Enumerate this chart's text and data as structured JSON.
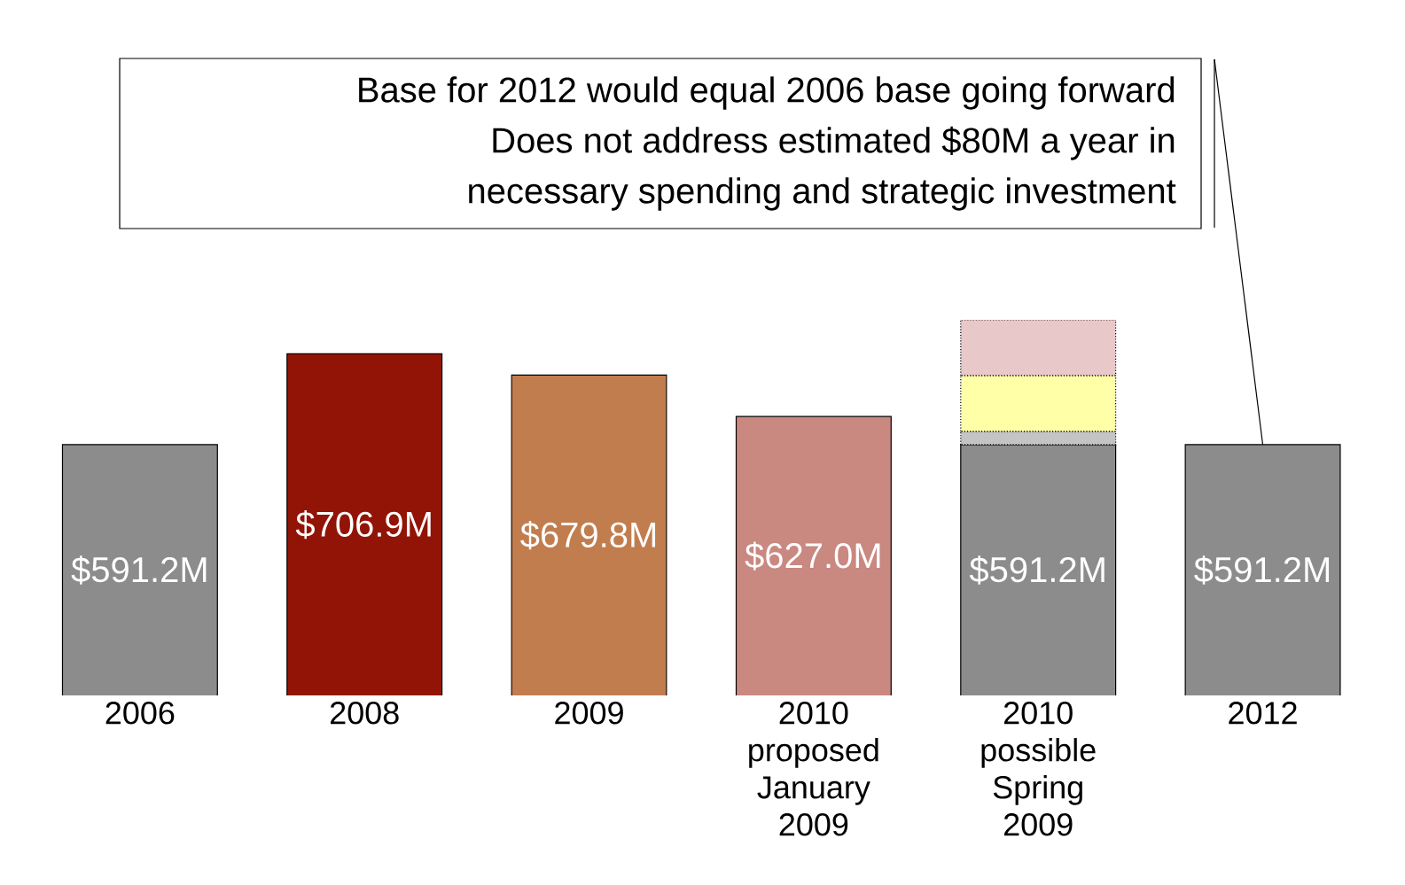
{
  "chart_data": {
    "type": "bar",
    "stacked": true,
    "categories": [
      "2006",
      "2008",
      "2009",
      "2010 proposed January 2009",
      "2010 possible Spring 2009",
      "2012"
    ],
    "series": [
      {
        "colors": [
          "#8c8c8c",
          "#921406",
          "#c27d4e",
          "#c98880",
          "#8c8c8c",
          "#8c8c8c"
        ],
        "values": [
          591.2,
          706.9,
          679.8,
          627.0,
          591.2,
          591.2
        ],
        "value_labels": [
          "$591.2M",
          "$706.9M",
          "$679.8M",
          "$627.0M",
          "$591.2M",
          "$591.2M"
        ]
      },
      {
        "color": "#c4c4c4",
        "line_style": "dotted",
        "values": [
          null,
          null,
          null,
          null,
          17,
          null
        ]
      },
      {
        "color": "#ffffa8",
        "line_style": "dotted",
        "values": [
          null,
          null,
          null,
          null,
          71,
          null
        ]
      },
      {
        "color": "#e8c8c8",
        "line_style": "dotted",
        "values": [
          null,
          null,
          null,
          null,
          71,
          null
        ]
      }
    ],
    "annotations": [
      {
        "text": "Base for 2012 would equal 2006 base going forward",
        "x": "2012",
        "y": 591.2
      },
      "Does not address estimated $80M a year in",
      "necessary spending and strategic investment"
    ]
  }
}
